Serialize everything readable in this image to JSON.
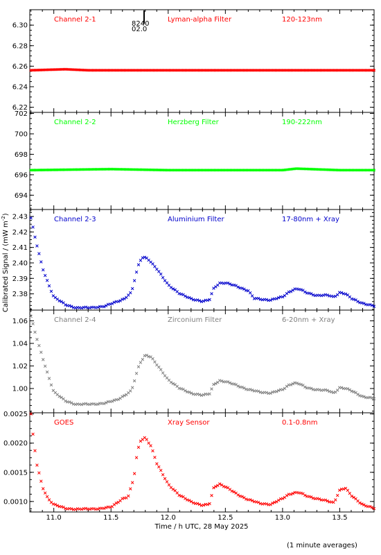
{
  "figure": {
    "ylabel": "Calibrated Signal / (mW m",
    "ylabel_sup": "-2",
    "ylabel_close": ")",
    "xlabel": "Time / h UTC, 28 May 2025",
    "footnote": "(1 minute averages)",
    "marker_label_1": "8240",
    "marker_label_2": "02.0",
    "x_ticks": [
      "11.0",
      "11.5",
      "12.0",
      "12.5",
      "13.0",
      "13.5"
    ]
  },
  "chart_data": [
    {
      "type": "scatter",
      "id": "p1",
      "labels": [
        "Channel 2-1",
        "Lyman-alpha Filter",
        "120-123nm"
      ],
      "color": "#ff0000",
      "xlim": [
        10.79,
        13.8
      ],
      "ylim": [
        6.215,
        6.315
      ],
      "ytick_values": [
        6.22,
        6.24,
        6.26,
        6.28,
        6.3
      ],
      "y_ticks": [
        "6.22",
        "6.24",
        "6.26",
        "6.28",
        "6.30"
      ],
      "series": [
        {
          "x": [
            10.8,
            11.1,
            11.3,
            11.6,
            12.0,
            12.5,
            13.0,
            13.5,
            13.8
          ],
          "y": [
            6.256,
            6.257,
            6.256,
            6.256,
            6.256,
            6.256,
            6.256,
            6.256,
            6.256
          ]
        }
      ]
    },
    {
      "type": "scatter",
      "id": "p2",
      "labels": [
        "Channel 2-2",
        "Herzberg Filter",
        "190-222nm"
      ],
      "color": "#00ff00",
      "xlim": [
        10.79,
        13.8
      ],
      "ylim": [
        692.6,
        702.1
      ],
      "ytick_values": [
        694,
        696,
        698,
        700,
        702
      ],
      "y_ticks": [
        "694",
        "696",
        "698",
        "700",
        "702"
      ],
      "series": [
        {
          "x": [
            10.8,
            11.5,
            12.0,
            12.5,
            13.0,
            13.12,
            13.5,
            13.8
          ],
          "y": [
            696.45,
            696.55,
            696.45,
            696.45,
            696.45,
            696.6,
            696.45,
            696.45
          ]
        }
      ]
    },
    {
      "type": "scatter",
      "id": "p3",
      "labels": [
        "Channel 2-3",
        "Aluminium Filter",
        "17-80nm + Xray"
      ],
      "color": "#0000cc",
      "xlim": [
        10.79,
        13.8
      ],
      "ylim": [
        2.3695,
        2.4345
      ],
      "ytick_values": [
        2.38,
        2.39,
        2.4,
        2.41,
        2.42,
        2.43
      ],
      "y_ticks": [
        "2.38",
        "2.39",
        "2.40",
        "2.41",
        "2.42",
        "2.43"
      ],
      "series": [
        {
          "x": [
            10.8,
            10.84,
            10.9,
            10.95,
            11.0,
            11.1,
            11.2,
            11.3,
            11.45,
            11.55,
            11.62,
            11.68,
            11.72,
            11.75,
            11.78,
            11.82,
            11.9,
            12.0,
            12.1,
            12.2,
            12.3,
            12.36,
            12.4,
            12.45,
            12.5,
            12.6,
            12.7,
            12.75,
            12.9,
            13.0,
            13.05,
            13.1,
            13.15,
            13.2,
            13.3,
            13.4,
            13.45,
            13.5,
            13.55,
            13.6,
            13.7,
            13.8
          ],
          "y": [
            2.429,
            2.415,
            2.397,
            2.387,
            2.378,
            2.373,
            2.371,
            2.371,
            2.372,
            2.375,
            2.377,
            2.381,
            2.393,
            2.401,
            2.404,
            2.403,
            2.396,
            2.386,
            2.38,
            2.377,
            2.375,
            2.376,
            2.384,
            2.387,
            2.387,
            2.385,
            2.382,
            2.377,
            2.376,
            2.378,
            2.381,
            2.383,
            2.383,
            2.381,
            2.379,
            2.379,
            2.378,
            2.381,
            2.38,
            2.377,
            2.374,
            2.372
          ]
        }
      ]
    },
    {
      "type": "scatter",
      "id": "p4",
      "labels": [
        "Channel 2-4",
        "Zirconium Filter",
        "6-20nm + Xray"
      ],
      "color": "#808080",
      "xlim": [
        10.79,
        13.8
      ],
      "ylim": [
        0.9785,
        1.0695
      ],
      "ytick_values": [
        1.0,
        1.02,
        1.04,
        1.06
      ],
      "y_ticks": [
        "1.00",
        "1.02",
        "1.04",
        "1.06"
      ],
      "series": [
        {
          "x": [
            10.8,
            10.84,
            10.9,
            10.95,
            11.0,
            11.1,
            11.2,
            11.3,
            11.45,
            11.55,
            11.62,
            11.68,
            11.72,
            11.75,
            11.8,
            11.85,
            11.9,
            12.0,
            12.1,
            12.2,
            12.3,
            12.36,
            12.4,
            12.45,
            12.5,
            12.6,
            12.7,
            12.8,
            12.9,
            13.0,
            13.05,
            13.1,
            13.15,
            13.2,
            13.3,
            13.4,
            13.45,
            13.5,
            13.55,
            13.6,
            13.7,
            13.8
          ],
          "y": [
            1.064,
            1.048,
            1.028,
            1.012,
            0.997,
            0.989,
            0.986,
            0.986,
            0.987,
            0.99,
            0.994,
            0.998,
            1.012,
            1.022,
            1.03,
            1.028,
            1.021,
            1.008,
            1.0,
            0.996,
            0.994,
            0.995,
            1.004,
            1.007,
            1.006,
            1.003,
            0.999,
            0.997,
            0.996,
            0.999,
            1.003,
            1.005,
            1.004,
            1.001,
            0.999,
            0.998,
            0.996,
            1.001,
            1.0,
            0.998,
            0.993,
            0.991
          ]
        }
      ]
    },
    {
      "type": "scatter",
      "id": "p5",
      "labels": [
        "GOES",
        "Xray Sensor",
        "0.1-0.8nm"
      ],
      "color": "#ff0000",
      "xlim": [
        10.79,
        13.8
      ],
      "ylim": [
        0.00082,
        0.00252
      ],
      "ytick_values": [
        0.001,
        0.0015,
        0.002,
        0.0025
      ],
      "y_ticks": [
        "0.0010",
        "0.0015",
        "0.0020",
        "0.0025"
      ],
      "series": [
        {
          "x": [
            10.8,
            10.82,
            10.85,
            10.9,
            10.95,
            11.0,
            11.1,
            11.2,
            11.3,
            11.4,
            11.5,
            11.6,
            11.65,
            11.7,
            11.73,
            11.76,
            11.8,
            11.85,
            11.9,
            12.0,
            12.1,
            12.2,
            12.3,
            12.36,
            12.4,
            12.45,
            12.5,
            12.6,
            12.7,
            12.8,
            12.9,
            13.0,
            13.05,
            13.1,
            13.15,
            13.2,
            13.3,
            13.4,
            13.45,
            13.5,
            13.55,
            13.6,
            13.7,
            13.8
          ],
          "y": [
            0.0025,
            0.0021,
            0.00165,
            0.00125,
            0.00105,
            0.00095,
            0.00088,
            0.00087,
            0.00087,
            0.00088,
            0.0009,
            0.00105,
            0.00108,
            0.0014,
            0.00185,
            0.00205,
            0.0021,
            0.00195,
            0.00165,
            0.0013,
            0.0011,
            0.001,
            0.00093,
            0.00095,
            0.00125,
            0.0013,
            0.00125,
            0.00113,
            0.00103,
            0.00097,
            0.00095,
            0.00105,
            0.00112,
            0.00115,
            0.00115,
            0.0011,
            0.00105,
            0.001,
            0.00098,
            0.0012,
            0.00123,
            0.0011,
            0.00095,
            0.00088
          ]
        }
      ]
    }
  ]
}
